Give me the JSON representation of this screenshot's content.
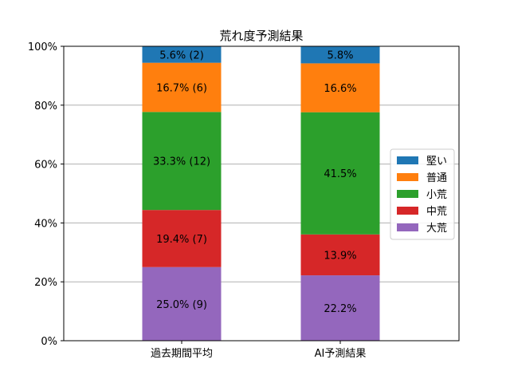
{
  "chart_data": {
    "type": "bar",
    "stacked": true,
    "title": "荒れ度予測結果",
    "xlabel": "",
    "ylabel": "",
    "ylim": [
      0,
      100
    ],
    "y_ticks": [
      "0%",
      "20%",
      "40%",
      "60%",
      "80%",
      "100%"
    ],
    "categories": [
      "過去期間平均",
      "AI予測結果"
    ],
    "grid": "horizontal",
    "legend_position": "right",
    "series": [
      {
        "name": "大荒",
        "color": "#9467bd",
        "values": [
          25.0,
          22.2
        ],
        "labels": [
          "25.0% (9)",
          "22.2%"
        ]
      },
      {
        "name": "中荒",
        "color": "#d62728",
        "values": [
          19.4,
          13.9
        ],
        "labels": [
          "19.4% (7)",
          "13.9%"
        ]
      },
      {
        "name": "小荒",
        "color": "#2ca02c",
        "values": [
          33.3,
          41.5
        ],
        "labels": [
          "33.3% (12)",
          "41.5%"
        ]
      },
      {
        "name": "普通",
        "color": "#ff7f0e",
        "values": [
          16.7,
          16.6
        ],
        "labels": [
          "16.7% (6)",
          "16.6%"
        ]
      },
      {
        "name": "堅い",
        "color": "#1f77b4",
        "values": [
          5.6,
          5.8
        ],
        "labels": [
          "5.6% (2)",
          "5.8%"
        ]
      }
    ],
    "legend_order": [
      "堅い",
      "普通",
      "小荒",
      "中荒",
      "大荒"
    ]
  }
}
